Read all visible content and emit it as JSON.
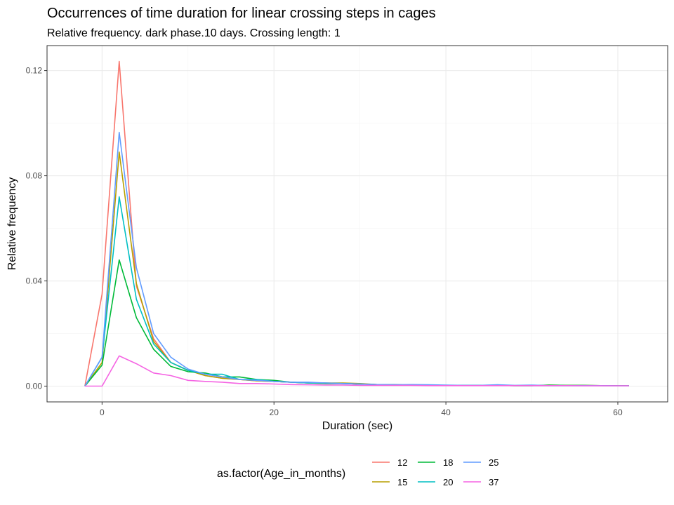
{
  "chart_data": {
    "type": "line",
    "title": "Occurrences of time duration for linear crossing steps in cages",
    "subtitle": "Relative frequency. dark phase.10 days. Crossing length: 1",
    "xlabel": "Duration (sec)",
    "ylabel": "Relative frequency",
    "xlim": [
      -6.4,
      65.8
    ],
    "ylim": [
      -0.006,
      0.1295
    ],
    "x_ticks": [
      0,
      20,
      40,
      60
    ],
    "y_ticks": [
      0.0,
      0.04,
      0.08,
      0.12
    ],
    "x_tick_labels": [
      "0",
      "20",
      "40",
      "60"
    ],
    "y_tick_labels": [
      "0.00",
      "0.04",
      "0.08",
      "0.12"
    ],
    "grid": true,
    "legend": {
      "title": "as.factor(Age_in_months)",
      "position": "bottom"
    },
    "x": [
      -2,
      0,
      2,
      4,
      6,
      8,
      10,
      12,
      14,
      16,
      18,
      20,
      22,
      24,
      26,
      28,
      30,
      32,
      34,
      36,
      38,
      40,
      42,
      44,
      46,
      48,
      50,
      52,
      54,
      56,
      58,
      60,
      61.3
    ],
    "series": [
      {
        "name": "12",
        "color": "#F8766D",
        "values": [
          0,
          0.035,
          0.1235,
          0.038,
          0.018,
          0.009,
          0.006,
          0.004,
          0.003,
          0.0025,
          0.002,
          0.0018,
          0.0015,
          0.0012,
          0.001,
          0.001,
          0.0008,
          0.0006,
          0.0005,
          0.0004,
          0.0004,
          0.0003,
          0.0003,
          0.0003,
          0.0003,
          0.0002,
          0.0002,
          0.0002,
          0.0002,
          0.0002,
          0.0002,
          0.0001,
          0.0001
        ]
      },
      {
        "name": "15",
        "color": "#B79F00",
        "values": [
          0,
          0.009,
          0.089,
          0.039,
          0.017,
          0.009,
          0.006,
          0.004,
          0.003,
          0.0025,
          0.002,
          0.0018,
          0.0015,
          0.0012,
          0.0012,
          0.0012,
          0.001,
          0.0006,
          0.0005,
          0.0004,
          0.0004,
          0.0003,
          0.0003,
          0.0003,
          0.0003,
          0.0002,
          0.0002,
          0.0004,
          0.0003,
          0.0003,
          0.0002,
          0.0001,
          0.0001
        ]
      },
      {
        "name": "18",
        "color": "#00BA38",
        "values": [
          0,
          0.008,
          0.048,
          0.026,
          0.014,
          0.0075,
          0.0055,
          0.005,
          0.0035,
          0.0035,
          0.0025,
          0.0022,
          0.0015,
          0.0012,
          0.001,
          0.001,
          0.0008,
          0.0006,
          0.0005,
          0.0004,
          0.0004,
          0.0003,
          0.0003,
          0.0003,
          0.0003,
          0.0002,
          0.0002,
          0.0004,
          0.0003,
          0.0003,
          0.0002,
          0.0001,
          0.0001
        ]
      },
      {
        "name": "20",
        "color": "#00BFC4",
        "values": [
          0,
          0.011,
          0.072,
          0.033,
          0.016,
          0.009,
          0.006,
          0.0045,
          0.0045,
          0.0025,
          0.0025,
          0.0018,
          0.0015,
          0.0012,
          0.0012,
          0.001,
          0.0008,
          0.0006,
          0.0005,
          0.0004,
          0.0004,
          0.0003,
          0.0003,
          0.0003,
          0.0003,
          0.0002,
          0.0002,
          0.0002,
          0.0002,
          0.0002,
          0.0002,
          0.0001,
          0.0001
        ]
      },
      {
        "name": "25",
        "color": "#619CFF",
        "values": [
          0,
          0.011,
          0.0965,
          0.045,
          0.02,
          0.011,
          0.0065,
          0.0045,
          0.0035,
          0.0025,
          0.0022,
          0.0018,
          0.0015,
          0.0015,
          0.0012,
          0.001,
          0.0008,
          0.0006,
          0.0005,
          0.0006,
          0.0005,
          0.0004,
          0.0003,
          0.0003,
          0.0005,
          0.0003,
          0.0004,
          0.0002,
          0.0002,
          0.0002,
          0.0002,
          0.0001,
          0.0001
        ]
      },
      {
        "name": "37",
        "color": "#F564E3",
        "values": [
          0,
          0,
          0.0115,
          0.0085,
          0.005,
          0.004,
          0.0022,
          0.0018,
          0.0015,
          0.001,
          0.001,
          0.0008,
          0.0006,
          0.0005,
          0.0004,
          0.0004,
          0.0003,
          0.0003,
          0.0003,
          0.0003,
          0.0002,
          0.0002,
          0.0002,
          0.0002,
          0.0002,
          0.0002,
          0.0002,
          0.0002,
          0.0002,
          0.0001,
          0.0001,
          0.0001,
          0.0001
        ]
      }
    ]
  }
}
